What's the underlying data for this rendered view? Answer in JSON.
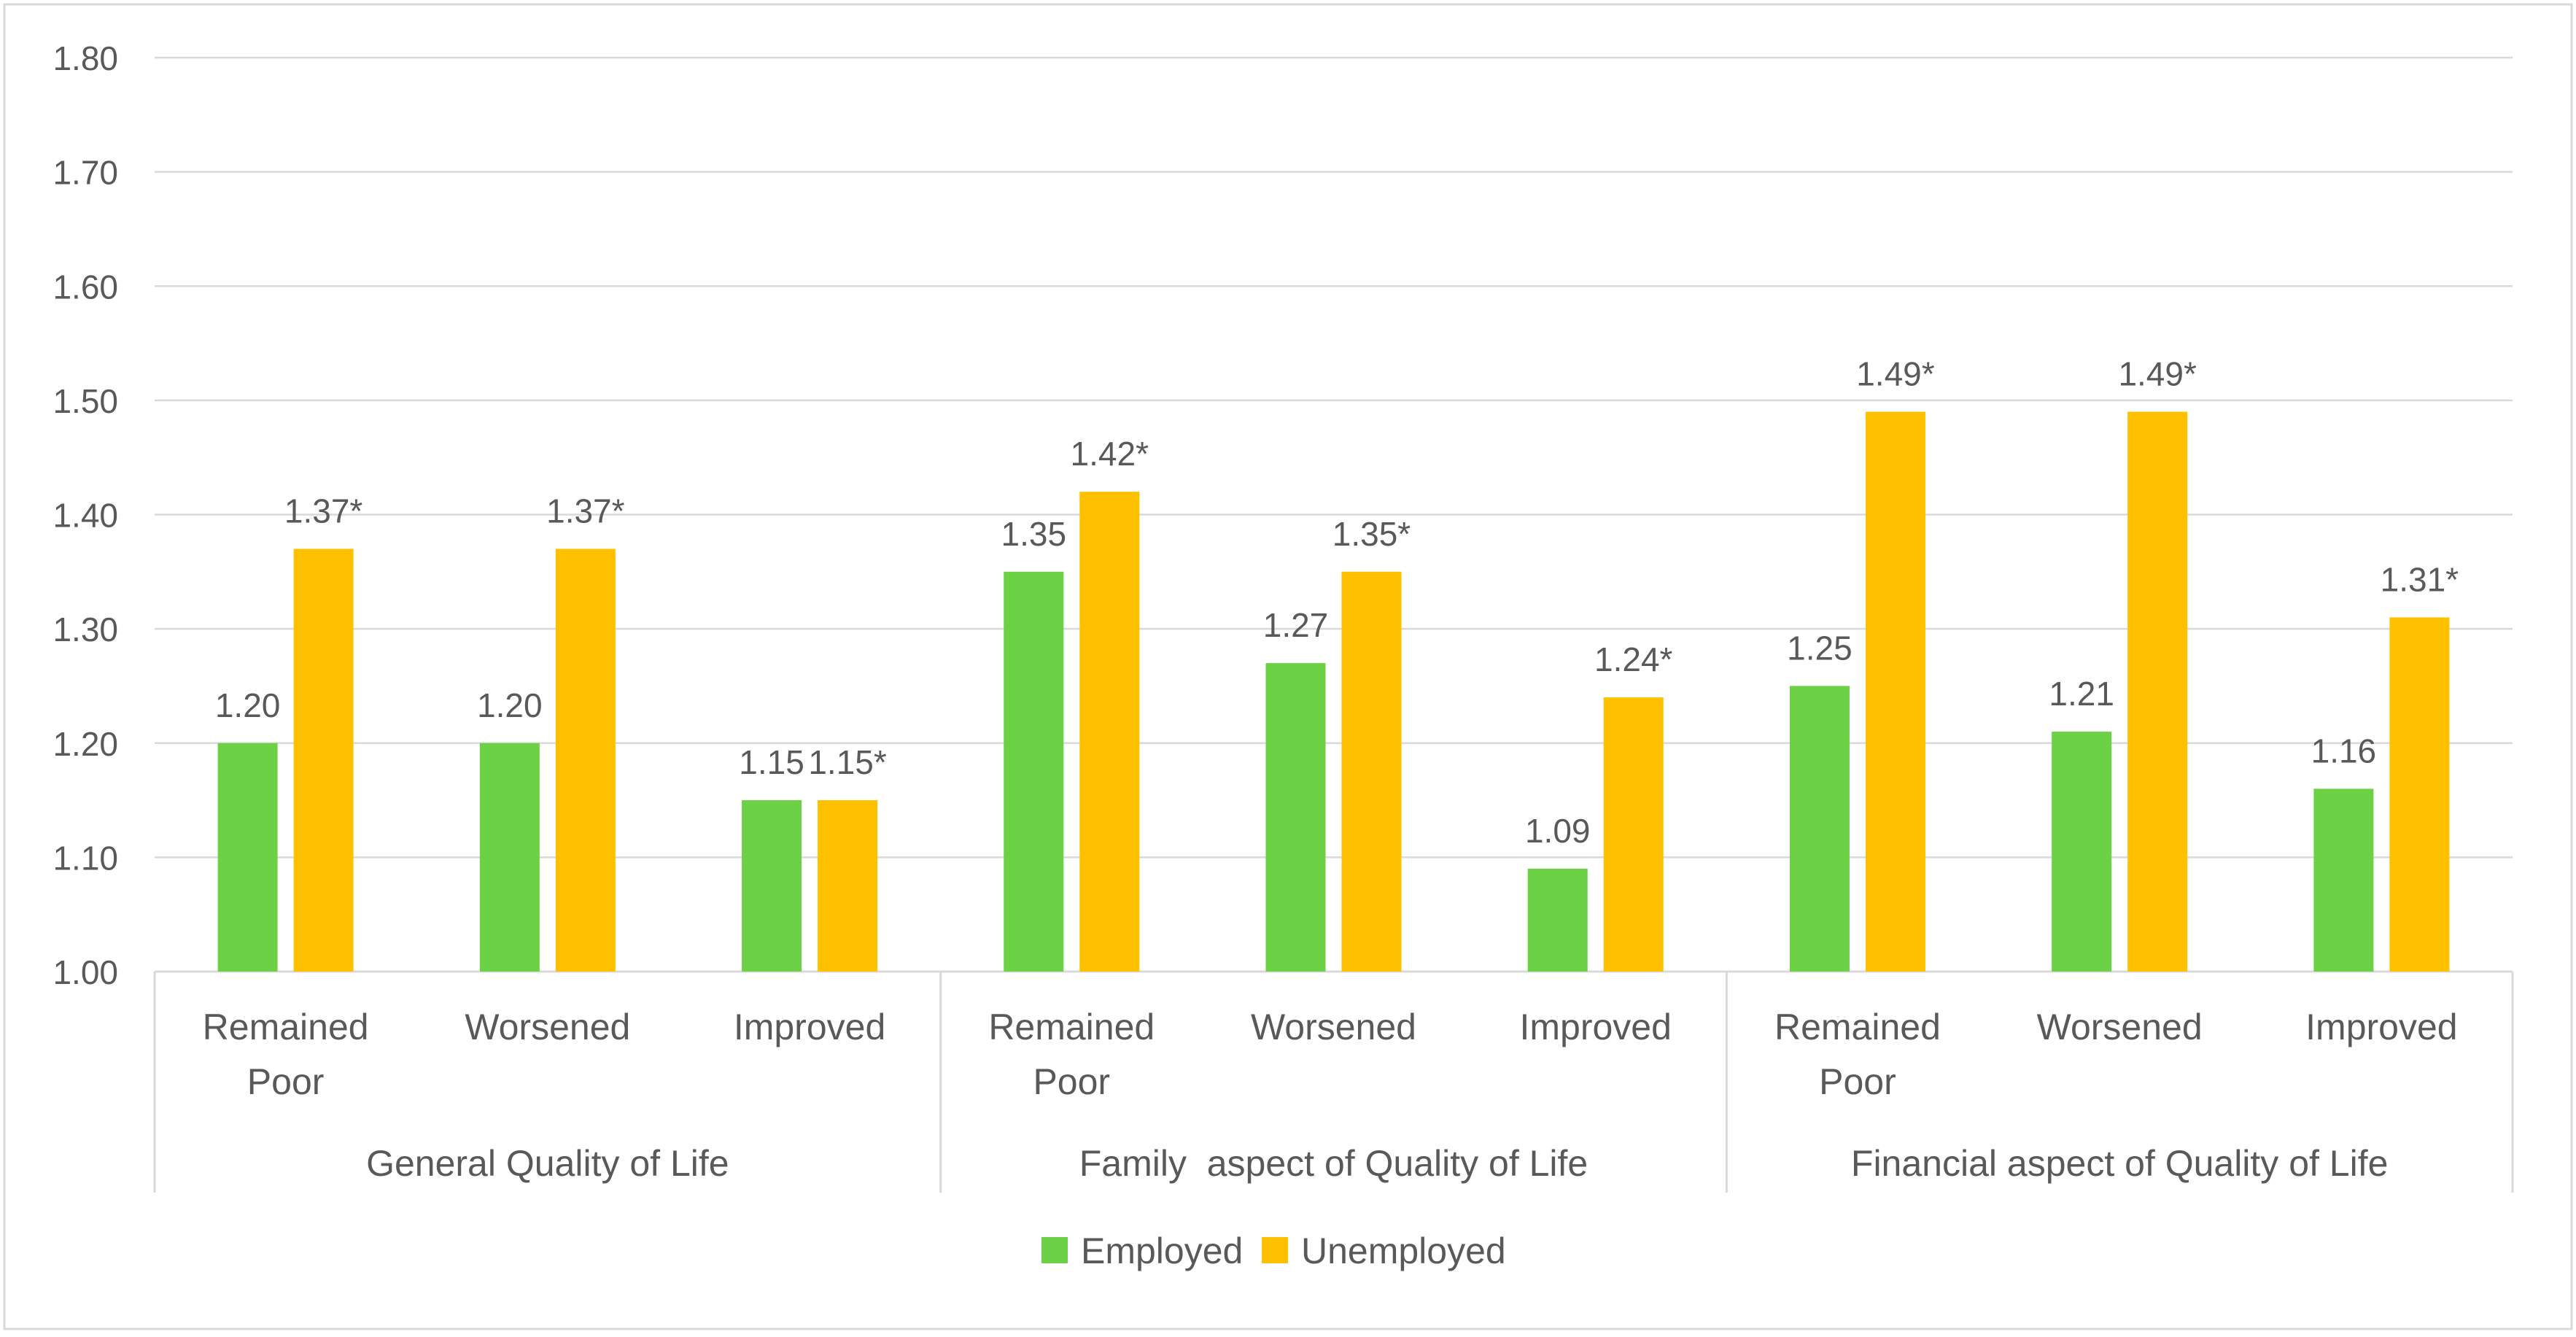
{
  "chart_data": {
    "type": "bar",
    "title": "",
    "xlabel": "",
    "ylabel": "",
    "ylim": [
      1.0,
      1.8
    ],
    "yticks": [
      "1.00",
      "1.10",
      "1.20",
      "1.30",
      "1.40",
      "1.50",
      "1.60",
      "1.70",
      "1.80"
    ],
    "grid": true,
    "groups": [
      {
        "label": "General Quality of Life",
        "categories": [
          "Remained Poor",
          "Worsened",
          "Improved"
        ]
      },
      {
        "label": "Family  aspect of Quality of Life",
        "categories": [
          "Remained Poor",
          "Worsened",
          "Improved"
        ]
      },
      {
        "label": "Financial aspect of Quality of Life",
        "categories": [
          "Remained Poor",
          "Worsened",
          "Improved"
        ]
      }
    ],
    "category_label_lines": [
      [
        "Remained",
        "Poor"
      ],
      [
        "Worsened"
      ],
      [
        "Improved"
      ],
      [
        "Remained",
        "Poor"
      ],
      [
        "Worsened"
      ],
      [
        "Improved"
      ],
      [
        "Remained",
        "Poor"
      ],
      [
        "Worsened"
      ],
      [
        "Improved"
      ]
    ],
    "series": [
      {
        "name": "Employed",
        "color": "#6CD144",
        "values": [
          1.2,
          1.2,
          1.15,
          1.35,
          1.27,
          1.09,
          1.25,
          1.21,
          1.16
        ],
        "labels": [
          "1.20",
          "1.20",
          "1.15",
          "1.35",
          "1.27",
          "1.09",
          "1.25",
          "1.21",
          "1.16"
        ]
      },
      {
        "name": "Unemployed",
        "color": "#FFC000",
        "values": [
          1.37,
          1.37,
          1.15,
          1.42,
          1.35,
          1.24,
          1.49,
          1.49,
          1.31
        ],
        "labels": [
          "1.37*",
          "1.37*",
          "1.15*",
          "1.42*",
          "1.35*",
          "1.24*",
          "1.49*",
          "1.49*",
          "1.31*"
        ]
      }
    ],
    "legend": {
      "position": "bottom",
      "entries": [
        "Employed",
        "Unemployed"
      ]
    }
  },
  "colors": {
    "grid": "#d9d9d9",
    "axis_text": "#595959",
    "frame": "#d9d9d9"
  }
}
